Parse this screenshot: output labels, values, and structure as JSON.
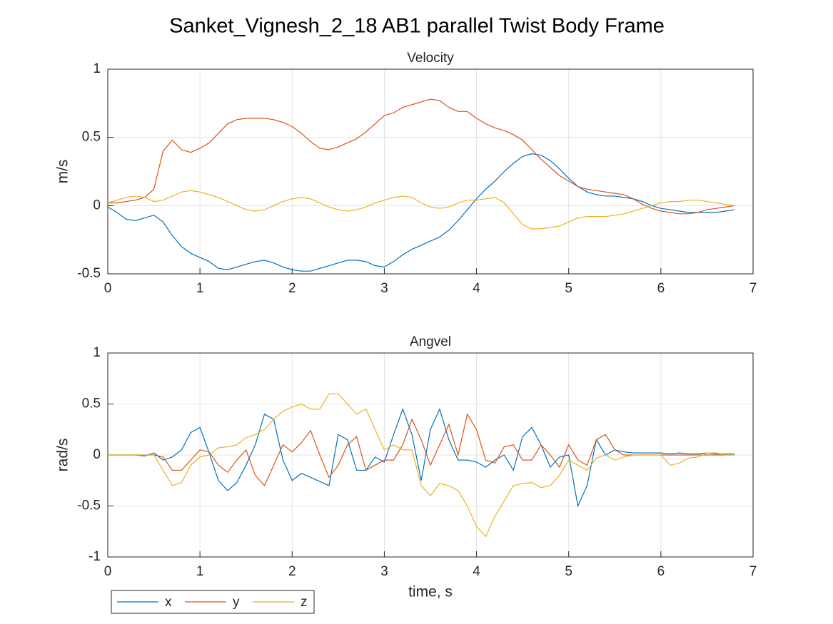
{
  "title": "Sanket_Vignesh_2_18 AB1 parallel Twist Body Frame",
  "chart_data": [
    {
      "type": "line",
      "title": "Velocity",
      "ylabel": "m/s",
      "x": [
        0,
        0.1,
        0.2,
        0.3,
        0.4,
        0.5,
        0.6,
        0.7,
        0.8,
        0.9,
        1,
        1.1,
        1.2,
        1.3,
        1.4,
        1.5,
        1.6,
        1.7,
        1.8,
        1.9,
        2,
        2.1,
        2.2,
        2.3,
        2.4,
        2.5,
        2.6,
        2.7,
        2.8,
        2.9,
        3,
        3.1,
        3.2,
        3.3,
        3.4,
        3.5,
        3.6,
        3.7,
        3.8,
        3.9,
        4,
        4.1,
        4.2,
        4.3,
        4.4,
        4.5,
        4.6,
        4.7,
        4.8,
        4.9,
        5,
        5.1,
        5.2,
        5.3,
        5.4,
        5.5,
        5.6,
        5.7,
        5.8,
        5.9,
        6,
        6.1,
        6.2,
        6.3,
        6.4,
        6.5,
        6.6,
        6.7,
        6.8
      ],
      "series": [
        {
          "color": "#0072bd",
          "values": [
            -0.01,
            -0.05,
            -0.1,
            -0.11,
            -0.09,
            -0.07,
            -0.12,
            -0.22,
            -0.3,
            -0.35,
            -0.38,
            -0.41,
            -0.46,
            -0.47,
            -0.45,
            -0.43,
            -0.41,
            -0.4,
            -0.42,
            -0.45,
            -0.47,
            -0.48,
            -0.48,
            -0.46,
            -0.44,
            -0.42,
            -0.4,
            -0.4,
            -0.41,
            -0.44,
            -0.45,
            -0.41,
            -0.36,
            -0.32,
            -0.29,
            -0.26,
            -0.23,
            -0.18,
            -0.11,
            -0.03,
            0.05,
            0.12,
            0.18,
            0.25,
            0.31,
            0.36,
            0.38,
            0.37,
            0.33,
            0.27,
            0.2,
            0.14,
            0.1,
            0.08,
            0.07,
            0.07,
            0.06,
            0.05,
            0.03,
            0,
            -0.02,
            -0.03,
            -0.04,
            -0.05,
            -0.05,
            -0.05,
            -0.05,
            -0.04,
            -0.03
          ]
        },
        {
          "color": "#d95319",
          "values": [
            0.02,
            0.02,
            0.03,
            0.04,
            0.06,
            0.12,
            0.4,
            0.48,
            0.41,
            0.39,
            0.42,
            0.46,
            0.53,
            0.6,
            0.63,
            0.64,
            0.64,
            0.64,
            0.63,
            0.61,
            0.58,
            0.53,
            0.47,
            0.42,
            0.41,
            0.43,
            0.46,
            0.49,
            0.54,
            0.6,
            0.66,
            0.68,
            0.72,
            0.74,
            0.76,
            0.78,
            0.77,
            0.72,
            0.69,
            0.69,
            0.64,
            0.6,
            0.57,
            0.55,
            0.52,
            0.48,
            0.41,
            0.34,
            0.28,
            0.22,
            0.18,
            0.14,
            0.12,
            0.11,
            0.1,
            0.09,
            0.08,
            0.05,
            0.01,
            -0.02,
            -0.04,
            -0.05,
            -0.06,
            -0.06,
            -0.05,
            -0.03,
            -0.02,
            -0.01,
            0
          ]
        },
        {
          "color": "#edb120",
          "values": [
            0.02,
            0.04,
            0.06,
            0.07,
            0.06,
            0.03,
            0.04,
            0.07,
            0.1,
            0.11,
            0.1,
            0.08,
            0.06,
            0.03,
            0,
            -0.03,
            -0.04,
            -0.03,
            0,
            0.03,
            0.05,
            0.06,
            0.05,
            0.02,
            -0.01,
            -0.03,
            -0.04,
            -0.03,
            -0.01,
            0.02,
            0.04,
            0.06,
            0.07,
            0.06,
            0.02,
            -0.01,
            -0.02,
            -0.01,
            0.02,
            0.04,
            0.04,
            0.05,
            0.06,
            0.02,
            -0.06,
            -0.14,
            -0.17,
            -0.17,
            -0.16,
            -0.15,
            -0.12,
            -0.09,
            -0.08,
            -0.08,
            -0.08,
            -0.07,
            -0.06,
            -0.04,
            -0.02,
            0,
            0.02,
            0.03,
            0.03,
            0.04,
            0.04,
            0.03,
            0.02,
            0.01,
            0
          ]
        }
      ],
      "xlim": [
        0,
        7
      ],
      "xticks": [
        0,
        1,
        2,
        3,
        4,
        5,
        6,
        7
      ],
      "ylim": [
        -0.5,
        1
      ],
      "yticks": [
        -0.5,
        0,
        0.5,
        1
      ],
      "grid": true
    },
    {
      "type": "line",
      "title": "Angvel",
      "ylabel": "rad/s",
      "xlabel": "time, s",
      "x": [
        0,
        0.1,
        0.2,
        0.3,
        0.4,
        0.5,
        0.6,
        0.7,
        0.8,
        0.9,
        1,
        1.1,
        1.2,
        1.3,
        1.4,
        1.5,
        1.6,
        1.7,
        1.8,
        1.9,
        2,
        2.1,
        2.2,
        2.3,
        2.4,
        2.5,
        2.6,
        2.7,
        2.8,
        2.9,
        3,
        3.1,
        3.2,
        3.3,
        3.4,
        3.5,
        3.6,
        3.7,
        3.8,
        3.9,
        4,
        4.1,
        4.2,
        4.3,
        4.4,
        4.5,
        4.6,
        4.7,
        4.8,
        4.9,
        5,
        5.1,
        5.2,
        5.3,
        5.4,
        5.5,
        5.6,
        5.7,
        5.8,
        5.9,
        6,
        6.1,
        6.2,
        6.3,
        6.4,
        6.5,
        6.6,
        6.7,
        6.8
      ],
      "series": [
        {
          "name": "x",
          "color": "#0072bd",
          "values": [
            0,
            0,
            0,
            0,
            -0.01,
            0.02,
            -0.05,
            -0.02,
            0.05,
            0.22,
            0.27,
            0.02,
            -0.25,
            -0.35,
            -0.27,
            -0.1,
            0.1,
            0.4,
            0.35,
            -0.05,
            -0.25,
            -0.18,
            -0.22,
            -0.26,
            -0.3,
            0.2,
            0.15,
            -0.15,
            -0.15,
            -0.02,
            -0.07,
            0.2,
            0.45,
            0.2,
            -0.25,
            0.25,
            0.45,
            0.15,
            -0.05,
            -0.05,
            -0.07,
            -0.12,
            -0.05,
            0,
            -0.15,
            0.18,
            0.27,
            0.1,
            -0.12,
            -0.02,
            0,
            -0.5,
            -0.3,
            0.15,
            0,
            0.05,
            0.03,
            0.02,
            0.02,
            0.02,
            0.02,
            0.01,
            0.02,
            0.01,
            0.01,
            0.02,
            0.01,
            0.01,
            0.01
          ]
        },
        {
          "name": "y",
          "color": "#d95319",
          "values": [
            0,
            0,
            0,
            0,
            0,
            0,
            -0.02,
            -0.15,
            -0.15,
            -0.05,
            0.05,
            0.03,
            -0.1,
            -0.17,
            -0.05,
            0.05,
            -0.2,
            -0.3,
            -0.1,
            0.1,
            0.03,
            0.12,
            0.24,
            0,
            -0.22,
            -0.1,
            0.1,
            0.18,
            -0.15,
            -0.1,
            -0.05,
            -0.05,
            0.1,
            0.35,
            0.15,
            -0.1,
            0.1,
            0.3,
            0,
            0.4,
            0.25,
            -0.05,
            -0.08,
            0.08,
            0.1,
            -0.05,
            -0.05,
            0.1,
            0,
            -0.12,
            0.1,
            -0.05,
            -0.1,
            0.15,
            0.2,
            0.05,
            0,
            0,
            0,
            0,
            0,
            0,
            0,
            0,
            0,
            0,
            0,
            0,
            0
          ]
        },
        {
          "name": "z",
          "color": "#edb120",
          "values": [
            0,
            0,
            0,
            0,
            0,
            0,
            -0.15,
            -0.3,
            -0.27,
            -0.1,
            -0.02,
            0,
            0.07,
            0.08,
            0.1,
            0.17,
            0.2,
            0.25,
            0.35,
            0.43,
            0.47,
            0.5,
            0.45,
            0.45,
            0.6,
            0.6,
            0.5,
            0.4,
            0.45,
            0.25,
            0.05,
            0.1,
            0.05,
            0.05,
            -0.3,
            -0.4,
            -0.28,
            -0.3,
            -0.35,
            -0.5,
            -0.7,
            -0.8,
            -0.6,
            -0.45,
            -0.3,
            -0.28,
            -0.27,
            -0.32,
            -0.3,
            -0.2,
            -0.05,
            -0.1,
            -0.15,
            -0.03,
            0,
            -0.05,
            -0.02,
            0,
            0,
            0,
            0,
            -0.1,
            -0.08,
            -0.03,
            -0.02,
            0.02,
            0.02,
            0,
            0
          ]
        }
      ],
      "xlim": [
        0,
        7
      ],
      "xticks": [
        0,
        1,
        2,
        3,
        4,
        5,
        6,
        7
      ],
      "ylim": [
        -1,
        1
      ],
      "yticks": [
        -1,
        -0.5,
        0,
        0.5,
        1
      ],
      "grid": true
    }
  ]
}
